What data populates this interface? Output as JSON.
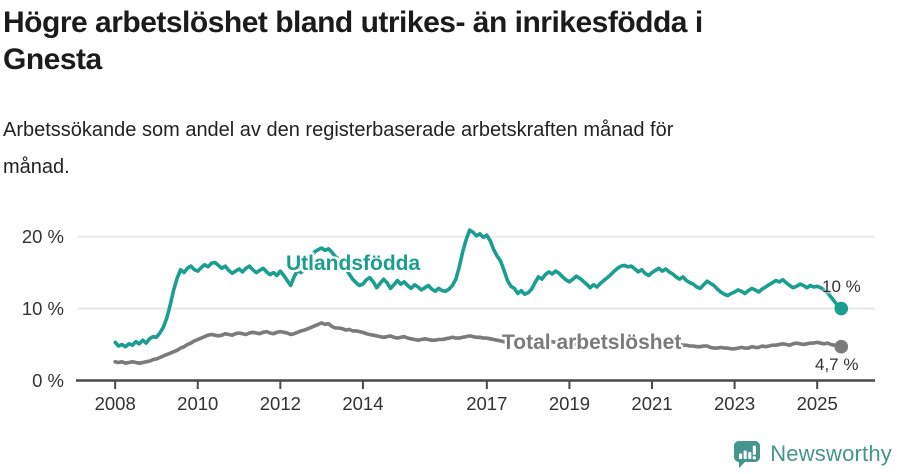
{
  "header": {
    "title": "Högre arbetslöshet bland utrikes- än inrikesfödda i Gnesta",
    "title_lines": [
      "Högre arbetslöshet bland utrikes- än inrikesfödda i",
      "Gnesta"
    ],
    "subtitle": "Arbetssökande som andel av den registerbaserade arbetskraften månad för månad.",
    "subtitle_lines": [
      "Arbetssökande som andel av den registerbaserade arbetskraften månad för",
      "månad."
    ]
  },
  "footer": {
    "brand": "Newsworthy",
    "brand_icon": "newsworthy-speech-bubble-bar-chart-icon"
  },
  "colors": {
    "series_utlandsfodda": "#1a9e8f",
    "series_total": "#7b7b7b",
    "logo_teal": "#45948e",
    "title_text": "#1b1b1b",
    "tick_text": "#333333",
    "axis": "#4a4a4a",
    "gridline": "#e8e8e8"
  },
  "chart_data": {
    "type": "line",
    "title": "Högre arbetslöshet bland utrikes- än inrikesfödda i Gnesta",
    "subtitle": "Arbetssökande som andel av den registerbaserade arbetskraften månad för månad.",
    "unit": "%",
    "grid": "horizontal-light",
    "legend": "inline-series-labels",
    "x_range": [
      2007.1,
      2026.4
    ],
    "y_axis": {
      "range": [
        0,
        23.7
      ],
      "ticks": [
        0,
        10,
        20
      ],
      "labels": [
        "0 %",
        "10 %",
        "20 %"
      ]
    },
    "x_axis": {
      "ticks": [
        2008,
        2010,
        2012,
        2014,
        2017,
        2019,
        2021,
        2023,
        2025
      ],
      "labels": [
        "2008",
        "2010",
        "2012",
        "2014",
        "2017",
        "2019",
        "2021",
        "2023",
        "2025"
      ]
    },
    "series": [
      {
        "name": "Utlandsfödda",
        "color": "#1a9e8f",
        "end_dot": true,
        "end_label": "10 %",
        "end_value": 10.0,
        "start_year": 2008,
        "step_months": 1,
        "values": [
          5.3,
          4.8,
          5.0,
          4.7,
          5.1,
          4.9,
          5.4,
          5.1,
          5.6,
          5.2,
          5.8,
          6.1,
          6.0,
          6.6,
          7.4,
          8.7,
          10.5,
          12.6,
          14.2,
          15.4,
          15.0,
          15.6,
          15.9,
          15.4,
          15.2,
          15.7,
          16.1,
          15.8,
          16.3,
          16.4,
          16.0,
          15.6,
          15.9,
          15.3,
          14.9,
          15.2,
          15.5,
          15.1,
          15.6,
          15.9,
          15.4,
          15.0,
          15.3,
          15.6,
          15.1,
          14.7,
          15.0,
          14.6,
          15.2,
          14.6,
          13.9,
          13.2,
          14.4,
          15.3,
          15.0,
          15.6,
          16.3,
          17.2,
          17.9,
          18.2,
          18.4,
          18.1,
          18.3,
          17.8,
          17.2,
          16.9,
          16.4,
          15.6,
          14.8,
          14.1,
          13.6,
          13.2,
          13.4,
          14.0,
          14.3,
          13.7,
          12.9,
          13.5,
          14.1,
          13.6,
          12.8,
          13.3,
          13.9,
          13.4,
          13.7,
          13.2,
          12.8,
          13.3,
          13.0,
          12.6,
          12.9,
          13.2,
          12.7,
          12.4,
          12.8,
          12.5,
          12.4,
          12.7,
          13.2,
          14.1,
          15.8,
          17.9,
          19.6,
          20.9,
          20.6,
          20.1,
          20.4,
          19.9,
          20.2,
          19.4,
          18.2,
          17.3,
          16.6,
          15.3,
          13.9,
          13.1,
          12.8,
          12.1,
          12.5,
          12.0,
          12.2,
          12.7,
          13.6,
          14.4,
          14.1,
          14.7,
          15.1,
          14.8,
          15.2,
          14.9,
          14.4,
          14.0,
          13.7,
          14.1,
          14.5,
          14.2,
          13.8,
          13.4,
          12.9,
          13.3,
          13.0,
          13.5,
          13.9,
          14.3,
          14.7,
          15.2,
          15.6,
          15.9,
          16.0,
          15.8,
          15.9,
          15.5,
          15.1,
          15.4,
          14.9,
          14.6,
          15.0,
          15.3,
          15.6,
          15.2,
          15.5,
          15.1,
          14.8,
          14.4,
          14.1,
          14.4,
          13.9,
          13.6,
          13.4,
          13.0,
          12.8,
          13.3,
          13.8,
          13.5,
          13.2,
          12.7,
          12.3,
          12.0,
          11.8,
          12.1,
          12.3,
          12.6,
          12.4,
          12.1,
          12.5,
          12.8,
          12.6,
          12.3,
          12.7,
          13.0,
          13.3,
          13.6,
          13.9,
          13.7,
          14.0,
          13.6,
          13.2,
          12.9,
          13.1,
          13.4,
          13.2,
          12.9,
          13.2,
          13.0,
          13.1,
          12.9,
          12.6,
          12.2,
          11.6,
          11.0,
          10.4,
          10.0
        ]
      },
      {
        "name": "Total arbetslöshet",
        "color": "#7b7b7b",
        "end_dot": true,
        "end_label": "4,7 %",
        "end_value": 4.7,
        "start_year": 2008,
        "step_months": 1,
        "values": [
          2.6,
          2.5,
          2.6,
          2.4,
          2.5,
          2.6,
          2.5,
          2.4,
          2.5,
          2.6,
          2.7,
          2.9,
          3.0,
          3.2,
          3.4,
          3.6,
          3.8,
          4.0,
          4.2,
          4.5,
          4.7,
          5.0,
          5.2,
          5.5,
          5.7,
          5.9,
          6.1,
          6.3,
          6.4,
          6.3,
          6.2,
          6.3,
          6.5,
          6.4,
          6.3,
          6.5,
          6.6,
          6.5,
          6.4,
          6.6,
          6.7,
          6.6,
          6.5,
          6.7,
          6.8,
          6.6,
          6.5,
          6.7,
          6.8,
          6.7,
          6.6,
          6.4,
          6.5,
          6.7,
          6.9,
          7.0,
          7.2,
          7.4,
          7.6,
          7.8,
          8.0,
          7.8,
          7.9,
          7.5,
          7.3,
          7.3,
          7.2,
          7.0,
          7.1,
          6.9,
          6.9,
          6.8,
          6.7,
          6.5,
          6.4,
          6.3,
          6.2,
          6.1,
          6.0,
          6.1,
          6.2,
          6.0,
          5.9,
          6.0,
          6.1,
          5.9,
          5.8,
          5.7,
          5.6,
          5.7,
          5.8,
          5.7,
          5.6,
          5.6,
          5.7,
          5.7,
          5.8,
          5.9,
          6.0,
          5.9,
          5.9,
          6.0,
          6.1,
          6.2,
          6.1,
          6.0,
          6.0,
          5.9,
          5.9,
          5.8,
          5.7,
          5.6,
          5.5,
          5.4,
          5.3,
          5.2,
          5.2,
          5.1,
          5.1,
          5.1,
          5.2,
          5.3,
          5.4,
          5.3,
          5.3,
          5.4,
          5.5,
          5.4,
          5.3,
          5.2,
          5.1,
          5.0,
          5.0,
          5.1,
          5.1,
          5.0,
          4.9,
          4.8,
          4.8,
          4.9,
          4.9,
          5.0,
          5.0,
          5.1,
          5.2,
          5.4,
          5.6,
          5.8,
          5.9,
          5.8,
          5.8,
          5.7,
          5.6,
          5.5,
          5.5,
          5.4,
          5.4,
          5.5,
          5.5,
          5.4,
          5.3,
          5.2,
          5.1,
          5.0,
          5.0,
          4.9,
          4.9,
          4.8,
          4.8,
          4.7,
          4.7,
          4.8,
          4.8,
          4.6,
          4.5,
          4.5,
          4.6,
          4.5,
          4.5,
          4.4,
          4.4,
          4.5,
          4.6,
          4.5,
          4.5,
          4.7,
          4.6,
          4.6,
          4.8,
          4.7,
          4.8,
          4.9,
          4.9,
          5.0,
          5.1,
          5.0,
          4.9,
          5.1,
          5.2,
          5.1,
          5.0,
          5.1,
          5.2,
          5.2,
          5.3,
          5.2,
          5.1,
          5.2,
          5.0,
          4.9,
          4.8,
          4.7
        ]
      }
    ]
  }
}
